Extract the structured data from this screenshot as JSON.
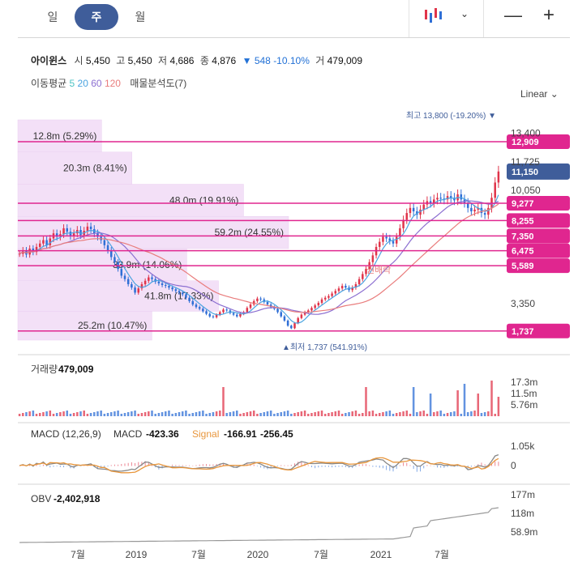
{
  "period_tabs": [
    {
      "label": "일",
      "active": false
    },
    {
      "label": "주",
      "active": true
    },
    {
      "label": "월",
      "active": false
    }
  ],
  "toolbar": {
    "chart_type_icon": "candlestick-icon",
    "dropdown_icon": "chevron-down-icon",
    "minus_icon": "minus-icon",
    "plus_icon": "plus-icon"
  },
  "stock": {
    "name": "아이윈스",
    "open_label": "시",
    "open": "5,450",
    "high_label": "고",
    "high": "5,450",
    "low_label": "저",
    "low": "4,686",
    "close_label": "종",
    "close": "4,876",
    "change_arrow": "▼",
    "change": "548",
    "change_pct": "-10.10%",
    "volume_label": "거",
    "volume": "479,009"
  },
  "indicators": {
    "ma_label": "이동평균",
    "ma_periods": [
      {
        "label": "5",
        "color": "#4cc3c3"
      },
      {
        "label": "20",
        "color": "#4aa3e0"
      },
      {
        "label": "60",
        "color": "#8c6fd1"
      },
      {
        "label": "120",
        "color": "#e97c7c"
      }
    ],
    "volume_profile_label": "매물분석도(7)"
  },
  "scale_label": "Linear",
  "colors": {
    "up": "#e0344a",
    "down": "#2f6fd6",
    "level": "#e0268f",
    "current": "#3f5d9a",
    "profile": "#f3e0f7"
  },
  "chart_data": {
    "type": "candlestick",
    "x_tick_labels": [
      "7월",
      "2019",
      "7월",
      "2020",
      "7월",
      "2021",
      "7월"
    ],
    "y_tick_labels": [
      "13,400",
      "11,725",
      "10,050",
      "3,350"
    ],
    "y_range": [
      1200,
      14200
    ],
    "high_annotation": {
      "label": "최고",
      "value": "13,800 (-19.20%)",
      "arrow": "▼"
    },
    "low_annotation": {
      "label": "최저",
      "value": "1,737 (541.91%)",
      "arrow": "▲"
    },
    "current_price": {
      "value": 11150,
      "label": "11,150"
    },
    "price_levels": [
      {
        "value": 12909,
        "label": "12,909"
      },
      {
        "value": 9277,
        "label": "9,277"
      },
      {
        "value": 8255,
        "label": "8,255"
      },
      {
        "value": 7350,
        "label": "7,350"
      },
      {
        "value": 6475,
        "label": "6,475"
      },
      {
        "value": 5589,
        "label": "5,589"
      },
      {
        "value": 1737,
        "label": "1,737"
      }
    ],
    "volume_profile": [
      {
        "price_from": 12300,
        "price_to": 14200,
        "label": "12.8m (5.29%)",
        "pct": 5.29
      },
      {
        "price_from": 10400,
        "price_to": 12300,
        "label": "20.3m (8.41%)",
        "pct": 8.41
      },
      {
        "price_from": 8500,
        "price_to": 10400,
        "label": "48.0m (19.91%)",
        "pct": 19.91
      },
      {
        "price_from": 6600,
        "price_to": 8500,
        "label": "59.2m (24.55%)",
        "pct": 24.55
      },
      {
        "price_from": 4700,
        "price_to": 6600,
        "label": "33.9m (14.06%)",
        "pct": 14.06
      },
      {
        "price_from": 2900,
        "price_to": 4700,
        "label": "41.8m (17.33%)",
        "pct": 17.33
      },
      {
        "price_from": 1200,
        "price_to": 2900,
        "label": "25.2m (10.47%)",
        "pct": 10.47
      }
    ],
    "rights_marker": "권배락",
    "close_series": [
      6300,
      6500,
      6250,
      6600,
      6400,
      6700,
      6900,
      7100,
      6800,
      7200,
      7500,
      7300,
      7450,
      7800,
      7600,
      7350,
      7500,
      7700,
      7400,
      7650,
      7900,
      7750,
      7500,
      7300,
      7100,
      6800,
      6500,
      6100,
      5800,
      5400,
      5000,
      4800,
      4500,
      4300,
      4000,
      4250,
      4500,
      4700,
      4900,
      4800,
      4650,
      4550,
      4450,
      4400,
      4300,
      4200,
      4100,
      4000,
      3900,
      3700,
      3500,
      3300,
      3150,
      3050,
      2900,
      2750,
      2600,
      2550,
      2700,
      2850,
      3000,
      2950,
      2800,
      2700,
      2600,
      2750,
      2850,
      3100,
      3300,
      3500,
      3650,
      3600,
      3450,
      3300,
      3150,
      3050,
      2850,
      2600,
      2350,
      2050,
      1900,
      2200,
      2500,
      2700,
      2850,
      2950,
      3100,
      3250,
      3400,
      3600,
      3700,
      3800,
      3950,
      4100,
      4250,
      4400,
      4300,
      4150,
      4300,
      4500,
      4800,
      5100,
      5400,
      5800,
      6200,
      6700,
      7000,
      7300,
      7200,
      7050,
      6900,
      7300,
      7800,
      8300,
      8700,
      9000,
      8800,
      8600,
      8900,
      9200,
      9400,
      9300,
      9500,
      9600,
      9550,
      9500,
      9700,
      9600,
      9450,
      9800,
      9500,
      9300,
      9000,
      8800,
      8900,
      9000,
      8700,
      8600,
      9000,
      9600,
      10500,
      11150
    ],
    "volume_panel": {
      "title": "거래량",
      "value": "479,009",
      "y_tick_labels": [
        "17.3m",
        "11.5m",
        "5.76m"
      ],
      "spike_positions": [
        60,
        102,
        116,
        121,
        129,
        131,
        135,
        139,
        141
      ]
    },
    "macd_panel": {
      "title": "MACD (12,26,9)",
      "macd_label": "MACD",
      "macd_value": "-423.36",
      "signal_label": "Signal",
      "signal_value": "-166.91",
      "hist_value": "-256.45",
      "y_tick_labels": [
        "1.05k",
        "0"
      ],
      "macd_color": "#888888",
      "signal_color": "#e8963c"
    },
    "obv_panel": {
      "title": "OBV",
      "value": "-2,402,918",
      "y_tick_labels": [
        "177m",
        "118m",
        "58.9m"
      ]
    }
  }
}
